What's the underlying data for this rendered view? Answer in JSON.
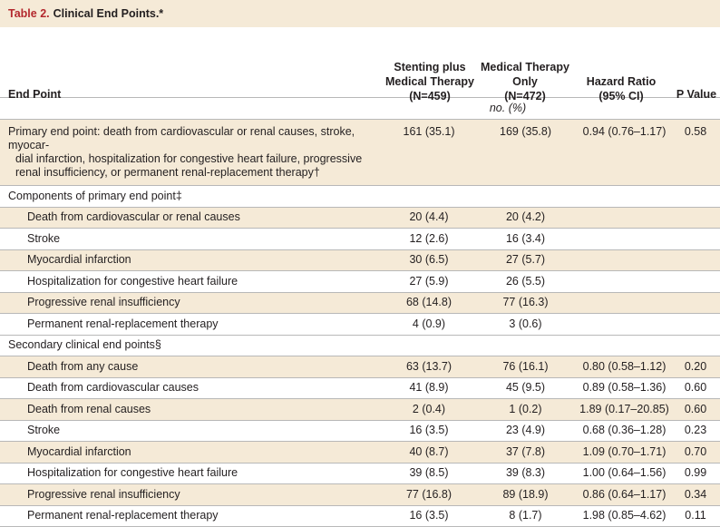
{
  "table": {
    "number": "Table 2.",
    "title": "Clinical End Points.*"
  },
  "header": {
    "end_point": "End Point",
    "stenting_l1": "Stenting plus",
    "stenting_l2": "Medical Therapy",
    "stenting_l3": "(N=459)",
    "medical_l1": "Medical Therapy",
    "medical_l2": "Only",
    "medical_l3": "(N=472)",
    "hr_l1": "Hazard Ratio",
    "hr_l2": "(95% CI)",
    "pvalue": "P Value",
    "unit": "no. (%)"
  },
  "primary": {
    "label_l1": "Primary end point: death from cardiovascular or renal causes, stroke, myocar-",
    "label_l2": "dial infarction, hospitalization for congestive heart failure, progressive",
    "label_l3": "renal insufficiency, or permanent renal-replacement therapy†",
    "stenting": "161 (35.1)",
    "medical": "169 (35.8)",
    "hr": "0.94 (0.76–1.17)",
    "p": "0.58"
  },
  "components": {
    "heading": "Components of primary end point‡",
    "rows": [
      {
        "label": "Death from cardiovascular or renal causes",
        "stenting": "20 (4.4)",
        "medical": "20 (4.2)",
        "hr": "",
        "p": ""
      },
      {
        "label": "Stroke",
        "stenting": "12 (2.6)",
        "medical": "16 (3.4)",
        "hr": "",
        "p": ""
      },
      {
        "label": "Myocardial infarction",
        "stenting": "30 (6.5)",
        "medical": "27 (5.7)",
        "hr": "",
        "p": ""
      },
      {
        "label": "Hospitalization for congestive heart failure",
        "stenting": "27 (5.9)",
        "medical": "26 (5.5)",
        "hr": "",
        "p": ""
      },
      {
        "label": "Progressive renal insufficiency",
        "stenting": "68 (14.8)",
        "medical": "77 (16.3)",
        "hr": "",
        "p": ""
      },
      {
        "label": "Permanent renal-replacement therapy",
        "stenting": "4 (0.9)",
        "medical": "3 (0.6)",
        "hr": "",
        "p": ""
      }
    ]
  },
  "secondary": {
    "heading": "Secondary clinical end points§",
    "rows": [
      {
        "label": "Death from any cause",
        "stenting": "63 (13.7)",
        "medical": "76 (16.1)",
        "hr": "0.80 (0.58–1.12)",
        "p": "0.20"
      },
      {
        "label": "Death from cardiovascular causes",
        "stenting": "41 (8.9)",
        "medical": "45 (9.5)",
        "hr": "0.89 (0.58–1.36)",
        "p": "0.60"
      },
      {
        "label": "Death from renal causes",
        "stenting": "2 (0.4)",
        "medical": "1 (0.2)",
        "hr": "1.89 (0.17–20.85)",
        "p": "0.60"
      },
      {
        "label": "Stroke",
        "stenting": "16 (3.5)",
        "medical": "23 (4.9)",
        "hr": "0.68 (0.36–1.28)",
        "p": "0.23"
      },
      {
        "label": "Myocardial infarction",
        "stenting": "40 (8.7)",
        "medical": "37 (7.8)",
        "hr": "1.09 (0.70–1.71)",
        "p": "0.70"
      },
      {
        "label": "Hospitalization for congestive heart failure",
        "stenting": "39 (8.5)",
        "medical": "39 (8.3)",
        "hr": "1.00 (0.64–1.56)",
        "p": "0.99"
      },
      {
        "label": "Progressive renal insufficiency",
        "stenting": "77 (16.8)",
        "medical": "89 (18.9)",
        "hr": "0.86 (0.64–1.17)",
        "p": "0.34"
      },
      {
        "label": "Permanent renal-replacement therapy",
        "stenting": "16 (3.5)",
        "medical": "8 (1.7)",
        "hr": "1.98 (0.85–4.62)",
        "p": "0.11"
      }
    ]
  }
}
